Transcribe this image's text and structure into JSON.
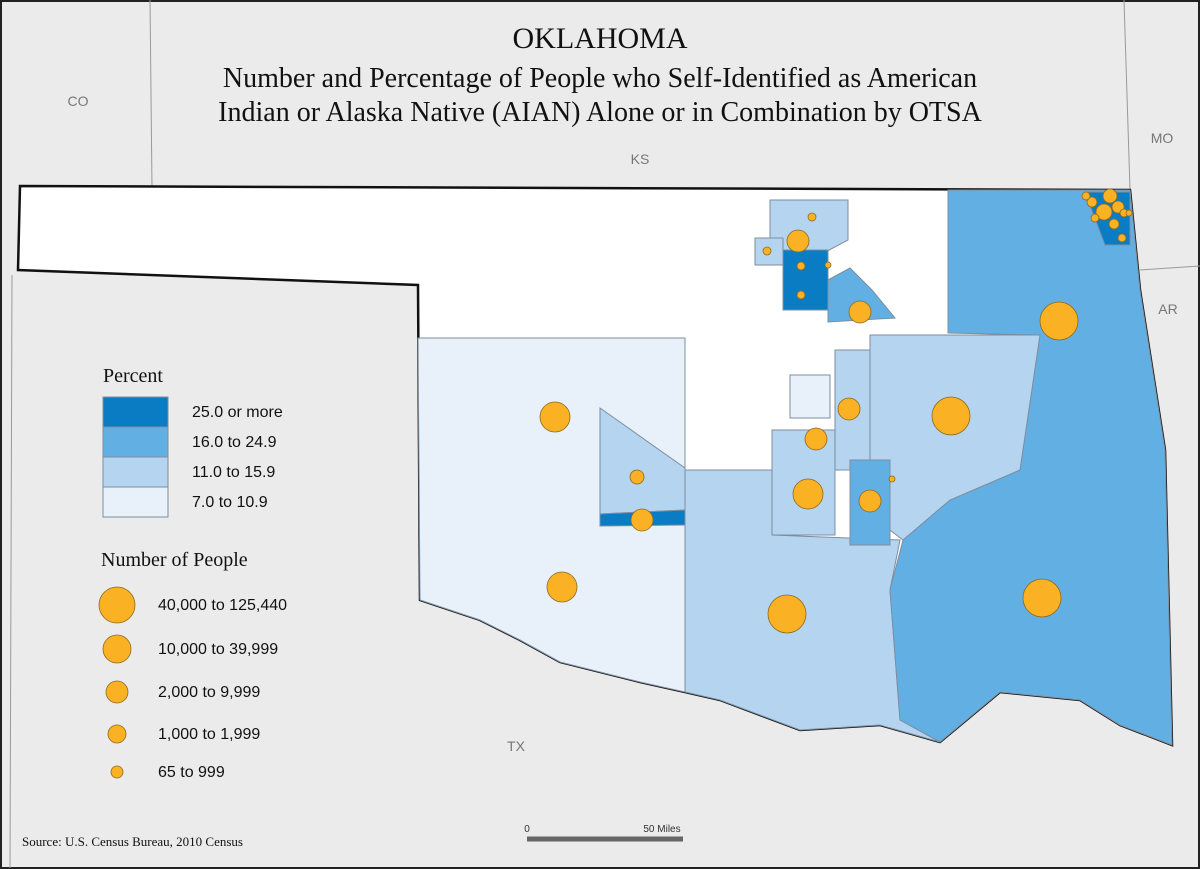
{
  "header": {
    "title": "OKLAHOMA",
    "subtitle": [
      "Number and Percentage of People who Self-Identified as American",
      "Indian or Alaska Native (AIAN) Alone or in Combination by OTSA"
    ]
  },
  "neighbors": [
    "CO",
    "KS",
    "MO",
    "AR",
    "TX"
  ],
  "legend": {
    "percent": {
      "title": "Percent",
      "classes": [
        {
          "label": "25.0 or more",
          "color": "#0a7cc4"
        },
        {
          "label": "16.0 to 24.9",
          "color": "#62b0e3"
        },
        {
          "label": "11.0 to 15.9",
          "color": "#b5d4ef"
        },
        {
          "label": "7.0 to 10.9",
          "color": "#e8f1f9"
        }
      ]
    },
    "people": {
      "title": "Number of People",
      "color": "#fbb124",
      "classes": [
        {
          "label": "40,000 to 125,440"
        },
        {
          "label": "10,000 to 39,999"
        },
        {
          "label": "2,000 to 9,999"
        },
        {
          "label": "1,000 to 1,999"
        },
        {
          "label": "65 to 999"
        }
      ]
    }
  },
  "scale_bar": {
    "start": "0",
    "end": "50 Miles"
  },
  "source": "Source: U.S. Census Bureau, 2010 Census"
}
